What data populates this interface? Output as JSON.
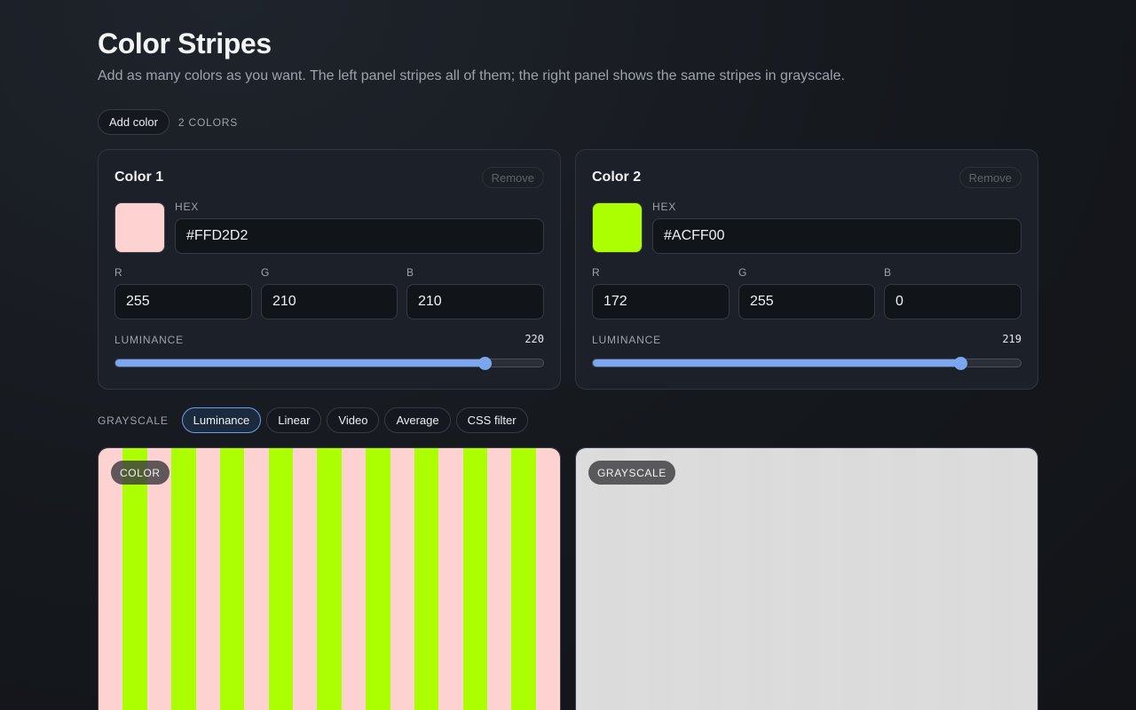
{
  "header": {
    "title": "Color Stripes",
    "subtitle": "Add as many colors as you want. The left panel stripes all of them; the right panel shows the same stripes in grayscale."
  },
  "toolbar": {
    "add_label": "Add color",
    "count_label": "2 COLORS"
  },
  "colors": [
    {
      "title": "Color 1",
      "remove_label": "Remove",
      "hex_label": "HEX",
      "hex": "#FFD2D2",
      "swatch": "#FFD2D2",
      "r_label": "R",
      "r": "255",
      "g_label": "G",
      "g": "210",
      "b_label": "B",
      "b": "210",
      "luminance_label": "LUMINANCE",
      "luminance": "220",
      "luminance_fraction": 0.8627
    },
    {
      "title": "Color 2",
      "remove_label": "Remove",
      "hex_label": "HEX",
      "hex": "#ACFF00",
      "swatch": "#ACFF00",
      "r_label": "R",
      "r": "172",
      "g_label": "G",
      "g": "255",
      "b_label": "B",
      "b": "0",
      "luminance_label": "LUMINANCE",
      "luminance": "219",
      "luminance_fraction": 0.8588
    }
  ],
  "grayscale": {
    "label": "GRAYSCALE",
    "modes": [
      "Luminance",
      "Linear",
      "Video",
      "Average",
      "CSS filter"
    ],
    "selected": "Luminance"
  },
  "panels": {
    "color_label": "COLOR",
    "grayscale_label": "GRAYSCALE",
    "stripe_count": 19,
    "color_stripes": [
      "#FFD2D2",
      "#ACFF00"
    ],
    "gray_stripes": [
      "#DCDCDC",
      "#DBDBDB"
    ]
  }
}
